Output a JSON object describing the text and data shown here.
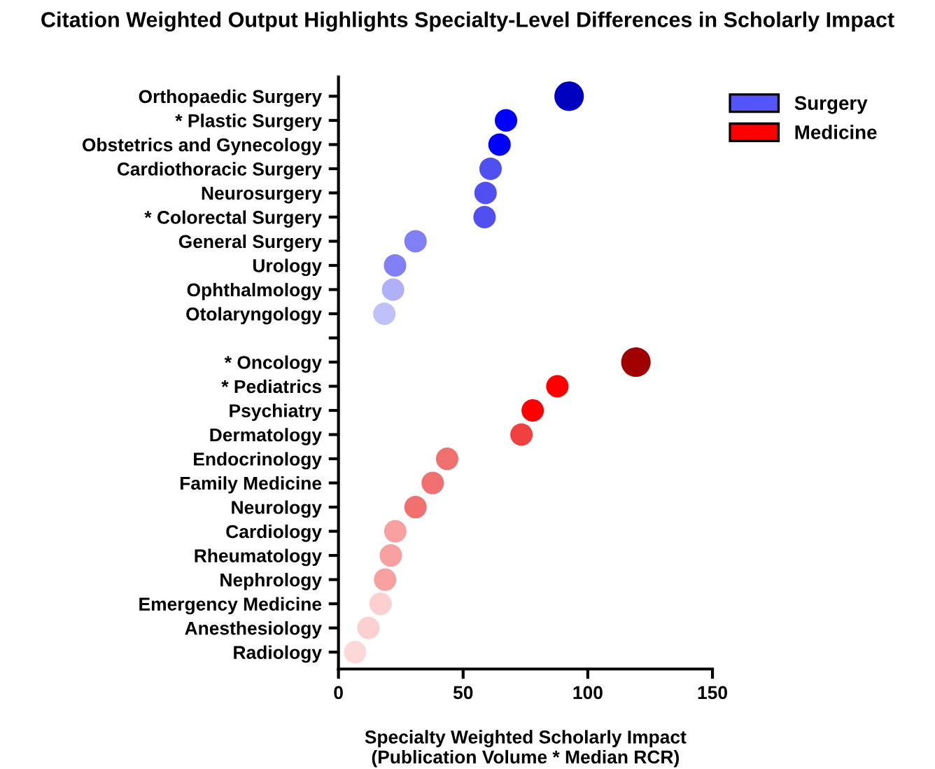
{
  "chart_data": {
    "type": "bubble",
    "title": "Citation Weighted Output Highlights Specialty-Level Differences in Scholarly Impact",
    "xlabel": "Specialty Weighted Scholarly Impact\n(Publication Volume * Median RCR)",
    "categories": [
      "Orthopaedic Surgery",
      "* Plastic Surgery",
      "Obstetrics and Gynecology",
      "Cardiothoracic Surgery",
      "Neurosurgery",
      "* Colorectal Surgery",
      "General Surgery",
      "Urology",
      "Ophthalmology",
      "Otolaryngology",
      null,
      "* Oncology",
      "* Pediatrics",
      "Psychiatry",
      "Dermatology",
      "Endocrinology",
      "Family Medicine",
      "Neurology",
      "Cardiology",
      "Rheumatology",
      "Nephrology",
      "Emergency Medicine",
      "Anesthesiology",
      "Radiology"
    ],
    "series": [
      {
        "name": "Surgery",
        "color": "#5555ff",
        "values": [
          92.5,
          67.2,
          64.6,
          61,
          59,
          58.6,
          30.9,
          22.7,
          21.9,
          18.4,
          null,
          null,
          null,
          null,
          null,
          null,
          null,
          null,
          null,
          null,
          null,
          null,
          null,
          null
        ],
        "sizes": [
          1,
          0.58,
          0.58,
          0.58,
          0.58,
          0.58,
          0.58,
          0.58,
          0.58,
          0.58,
          null,
          null,
          null,
          null,
          null,
          null,
          null,
          null,
          null,
          null,
          null,
          null,
          null,
          null
        ],
        "colors": [
          "#0000c0",
          "#0000ff",
          "#0000ff",
          "#5050f0",
          "#5050f0",
          "#5050f0",
          "#8080f4",
          "#8080f4",
          "#b0b0f8",
          "#c0c0fa",
          null,
          null,
          null,
          null,
          null,
          null,
          null,
          null,
          null,
          null,
          null,
          null,
          null,
          null
        ]
      },
      {
        "name": "Medicine",
        "color": "#ff0000",
        "values": [
          null,
          null,
          null,
          null,
          null,
          null,
          null,
          null,
          null,
          null,
          null,
          119.3,
          87.8,
          77.9,
          73.4,
          43.6,
          37.8,
          30.9,
          22.8,
          21,
          18.7,
          16.9,
          12,
          6.7
        ],
        "sizes": [
          null,
          null,
          null,
          null,
          null,
          null,
          null,
          null,
          null,
          null,
          null,
          1,
          0.58,
          0.58,
          0.58,
          0.58,
          0.58,
          0.58,
          0.58,
          0.58,
          0.58,
          0.58,
          0.58,
          0.58
        ],
        "colors": [
          null,
          null,
          null,
          null,
          null,
          null,
          null,
          null,
          null,
          null,
          null,
          "#a00000",
          "#ff0000",
          "#ff0000",
          "#f04040",
          "#f07070",
          "#f07070",
          "#f07070",
          "#f8a0a0",
          "#f8a0a0",
          "#f8a0a0",
          "#fcd0d0",
          "#fcd0d0",
          "#fcd8d8"
        ]
      }
    ],
    "orientation": "horizontal",
    "xlim": [
      0,
      150
    ],
    "xticks": [
      0,
      50,
      100,
      150
    ],
    "grid": false,
    "legend": "top right"
  }
}
